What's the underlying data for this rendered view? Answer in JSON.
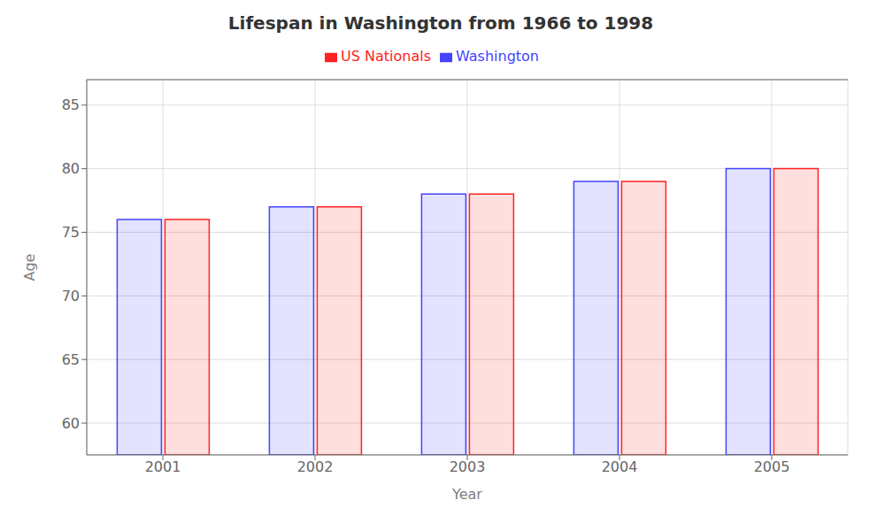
{
  "chart_data": {
    "type": "bar",
    "title": "Lifespan in Washington from 1966 to 1998",
    "x_label": "Year",
    "y_label": "Age",
    "categories": [
      "2001",
      "2002",
      "2003",
      "2004",
      "2005"
    ],
    "series": [
      {
        "name": "Washington",
        "color": "#4444ff",
        "values": [
          76,
          77,
          78,
          79,
          80
        ]
      },
      {
        "name": "US Nationals",
        "color": "#ff2222",
        "values": [
          76,
          77,
          78,
          79,
          80
        ]
      }
    ],
    "ylim": [
      57.5,
      87
    ],
    "yticks": [
      60,
      65,
      70,
      75,
      80,
      85
    ],
    "grid": true,
    "legend": "top"
  }
}
